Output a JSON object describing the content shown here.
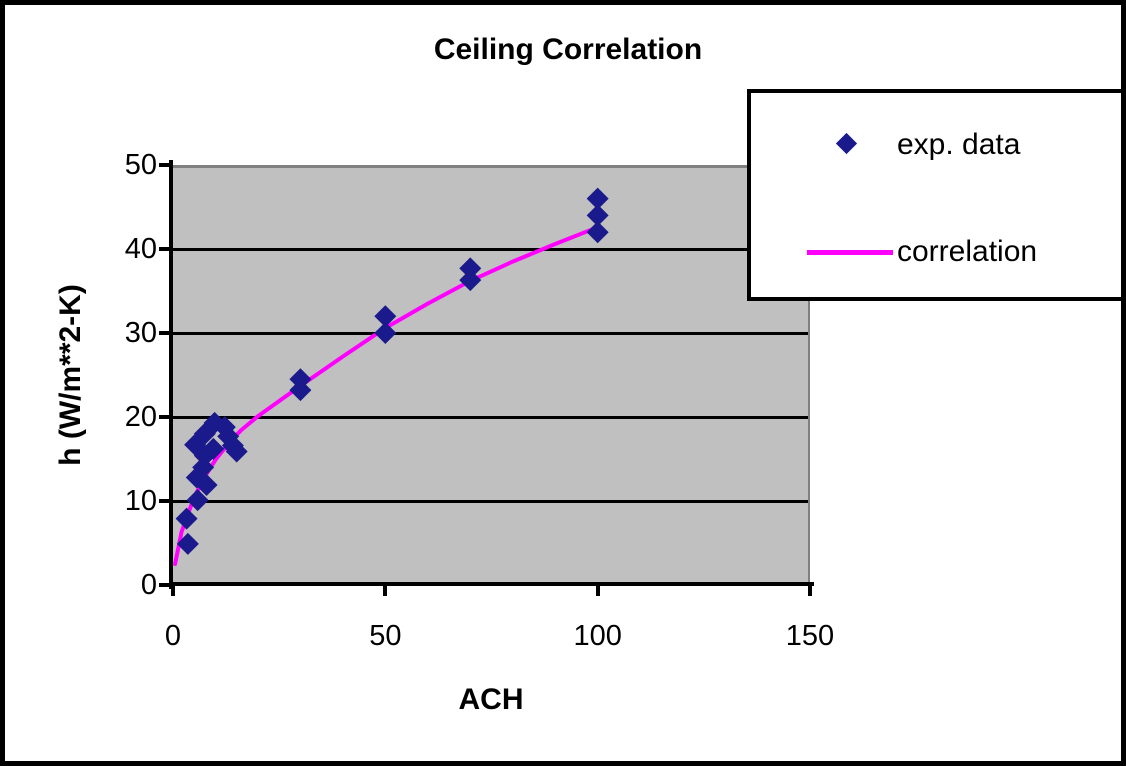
{
  "chart_data": {
    "type": "scatter",
    "title": "Ceiling Correlation",
    "xlabel": "ACH",
    "ylabel": "h (W/m**2-K)",
    "xlim": [
      0,
      150
    ],
    "ylim": [
      0,
      50
    ],
    "x_ticks": [
      0,
      50,
      100,
      150
    ],
    "y_ticks": [
      0,
      10,
      20,
      30,
      40,
      50
    ],
    "grid": "horizontal-black-gridlines",
    "plot_bg": "#c0c0c0",
    "gridline_color": "#000000",
    "legend_position": "top-right-overlapping",
    "series": [
      {
        "name": "exp. data",
        "kind": "scatter",
        "marker": "diamond",
        "color": "#1a1a8c",
        "points": [
          [
            3.5,
            4.9
          ],
          [
            3.2,
            7.9
          ],
          [
            5.8,
            10.1
          ],
          [
            7.9,
            11.9
          ],
          [
            5.6,
            12.8
          ],
          [
            7.1,
            14.0
          ],
          [
            7.5,
            15.4
          ],
          [
            5.2,
            16.7
          ],
          [
            9.5,
            16.2
          ],
          [
            7.5,
            18.0
          ],
          [
            9.8,
            19.3
          ],
          [
            12.2,
            18.8
          ],
          [
            13.0,
            17.7
          ],
          [
            14.1,
            16.6
          ],
          [
            15.0,
            15.9
          ],
          [
            30,
            23.2
          ],
          [
            30,
            24.5
          ],
          [
            50,
            30.0
          ],
          [
            50,
            32.0
          ],
          [
            70,
            36.3
          ],
          [
            70,
            37.7
          ],
          [
            100,
            42.0
          ],
          [
            100,
            44.0
          ],
          [
            100,
            46.0
          ]
        ]
      },
      {
        "name": "correlation",
        "kind": "line",
        "color": "#ff00ff",
        "points": [
          [
            0.5,
            2.5
          ],
          [
            2,
            6.3
          ],
          [
            5,
            10.5
          ],
          [
            8,
            13.3
          ],
          [
            10,
            14.9
          ],
          [
            13,
            16.8
          ],
          [
            16,
            18.4
          ],
          [
            20,
            20.1
          ],
          [
            25,
            21.9
          ],
          [
            30,
            23.7
          ],
          [
            40,
            27.2
          ],
          [
            50,
            30.6
          ],
          [
            60,
            33.5
          ],
          [
            70,
            36.2
          ],
          [
            80,
            38.5
          ],
          [
            90,
            40.6
          ],
          [
            100,
            42.6
          ]
        ]
      }
    ]
  }
}
